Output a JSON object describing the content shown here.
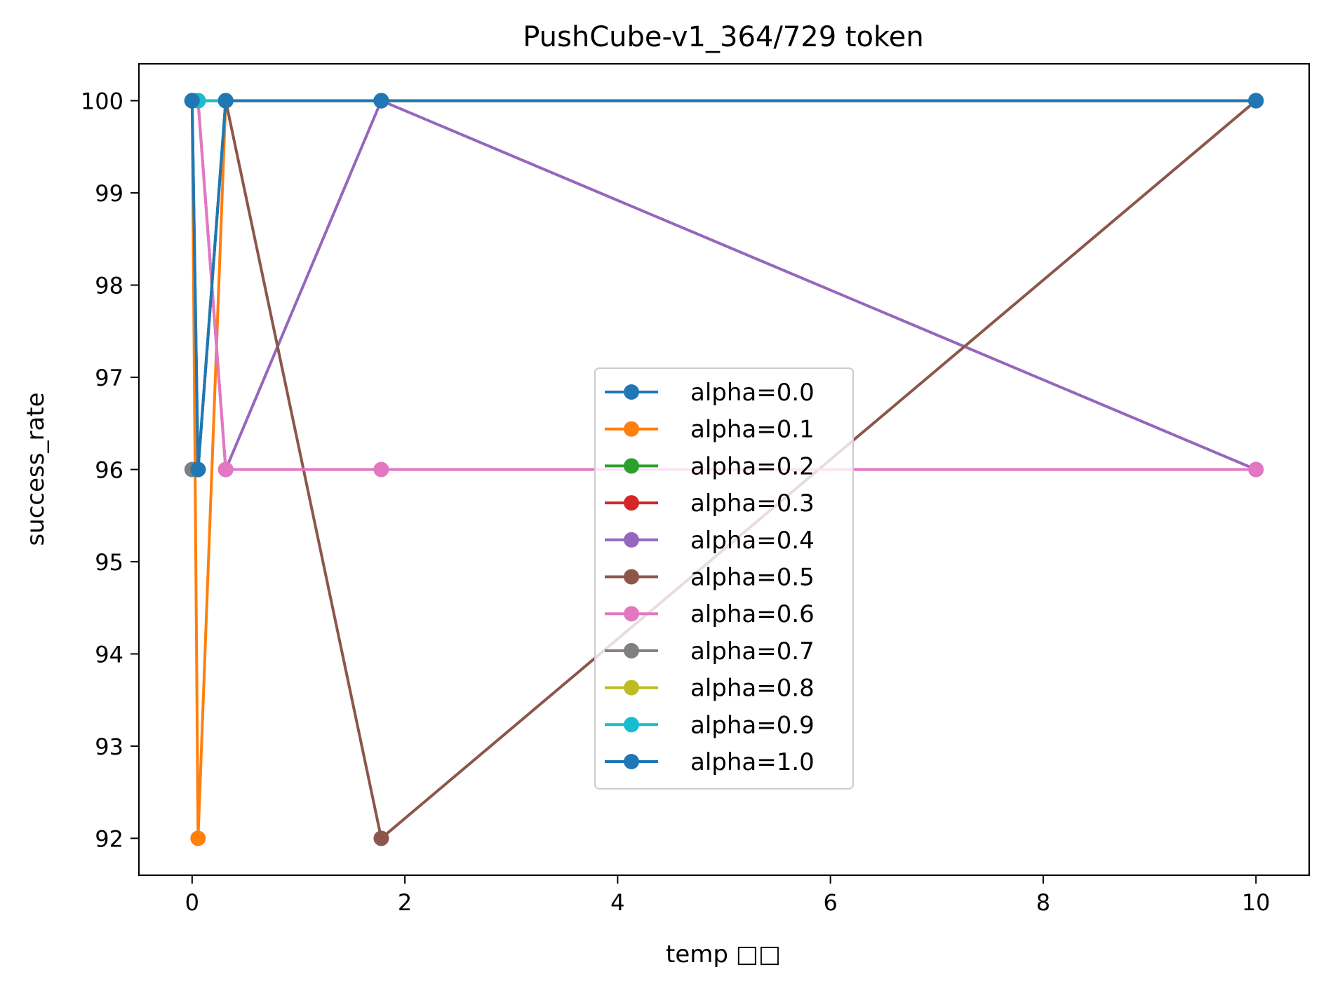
{
  "chart_data": {
    "type": "line",
    "title": "PushCube-v1_364/729 token",
    "xlabel": "temp □□",
    "ylabel": "success_rate",
    "xlim": [
      -0.5,
      10.5
    ],
    "ylim": [
      91.6,
      100.4
    ],
    "xticks": [
      0,
      2,
      4,
      6,
      8,
      10
    ],
    "xtick_labels": [
      "0",
      "2",
      "4",
      "6",
      "8",
      "10"
    ],
    "yticks": [
      92,
      93,
      94,
      95,
      96,
      97,
      98,
      99,
      100
    ],
    "ytick_labels": [
      "92",
      "93",
      "94",
      "95",
      "96",
      "97",
      "98",
      "99",
      "100"
    ],
    "grid": false,
    "legend_position": "lower-center",
    "series": [
      {
        "name": "alpha=0.0",
        "color": "#1f77b4",
        "points": [
          [
            0.0,
            100
          ],
          [
            0.056,
            96
          ],
          [
            0.316,
            100
          ],
          [
            1.778,
            100
          ],
          [
            10.0,
            100
          ]
        ]
      },
      {
        "name": "alpha=0.1",
        "color": "#ff7f0e",
        "points": [
          [
            0.0,
            100
          ],
          [
            0.056,
            92
          ],
          [
            0.316,
            100
          ],
          [
            1.778,
            100
          ],
          [
            10.0,
            100
          ]
        ]
      },
      {
        "name": "alpha=0.2",
        "color": "#2ca02c",
        "points": [
          [
            0.0,
            100
          ],
          [
            0.056,
            100
          ],
          [
            0.316,
            100
          ],
          [
            1.778,
            100
          ],
          [
            10.0,
            100
          ]
        ]
      },
      {
        "name": "alpha=0.3",
        "color": "#d62728",
        "points": [
          [
            0.0,
            100
          ],
          [
            0.056,
            100
          ],
          [
            0.316,
            100
          ],
          [
            1.778,
            100
          ],
          [
            10.0,
            100
          ]
        ]
      },
      {
        "name": "alpha=0.4",
        "color": "#9467bd",
        "points": [
          [
            0.0,
            100
          ],
          [
            0.056,
            100
          ],
          [
            0.316,
            96
          ],
          [
            1.778,
            100
          ],
          [
            10.0,
            96
          ]
        ]
      },
      {
        "name": "alpha=0.5",
        "color": "#8c564b",
        "points": [
          [
            0.0,
            100
          ],
          [
            0.056,
            100
          ],
          [
            0.316,
            100
          ],
          [
            1.778,
            92
          ],
          [
            10.0,
            100
          ]
        ]
      },
      {
        "name": "alpha=0.6",
        "color": "#e377c2",
        "points": [
          [
            0.0,
            100
          ],
          [
            0.056,
            100
          ],
          [
            0.316,
            96
          ],
          [
            1.778,
            96
          ],
          [
            10.0,
            96
          ]
        ]
      },
      {
        "name": "alpha=0.7",
        "color": "#7f7f7f",
        "points": [
          [
            0.0,
            96
          ],
          [
            0.056,
            96
          ],
          [
            0.316,
            100
          ],
          [
            1.778,
            100
          ],
          [
            10.0,
            100
          ]
        ]
      },
      {
        "name": "alpha=0.8",
        "color": "#bcbd22",
        "points": [
          [
            0.0,
            100
          ],
          [
            0.056,
            100
          ],
          [
            0.316,
            100
          ],
          [
            1.778,
            100
          ],
          [
            10.0,
            100
          ]
        ]
      },
      {
        "name": "alpha=0.9",
        "color": "#17becf",
        "points": [
          [
            0.0,
            100
          ],
          [
            0.056,
            100
          ],
          [
            0.316,
            100
          ],
          [
            1.778,
            100
          ],
          [
            10.0,
            100
          ]
        ]
      },
      {
        "name": "alpha=1.0",
        "color": "#1f77b4",
        "points": [
          [
            0.0,
            100
          ],
          [
            0.056,
            96
          ],
          [
            0.316,
            100
          ],
          [
            1.778,
            100
          ],
          [
            10.0,
            100
          ]
        ]
      }
    ]
  }
}
